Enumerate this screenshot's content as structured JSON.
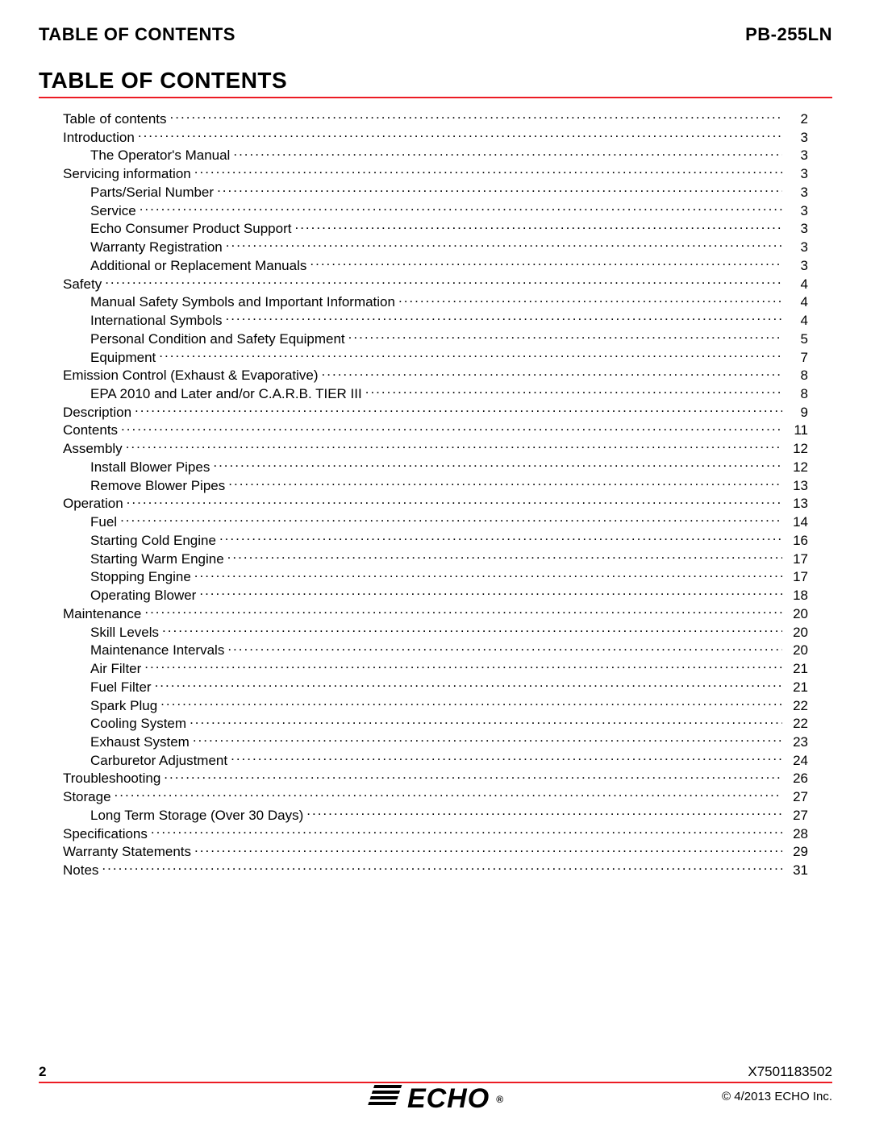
{
  "header": {
    "left": "TABLE OF CONTENTS",
    "right": "PB-255LN"
  },
  "title": "TABLE OF CONTENTS",
  "accent_color": "#ec1c24",
  "toc": [
    {
      "level": 1,
      "label": "Table of contents",
      "page": "2"
    },
    {
      "level": 1,
      "label": "Introduction",
      "page": "3"
    },
    {
      "level": 2,
      "label": "The Operator's Manual",
      "page": "3"
    },
    {
      "level": 1,
      "label": "Servicing information",
      "page": "3"
    },
    {
      "level": 2,
      "label": "Parts/Serial Number",
      "page": "3"
    },
    {
      "level": 2,
      "label": "Service",
      "page": "3"
    },
    {
      "level": 2,
      "label": "Echo Consumer Product Support",
      "page": "3"
    },
    {
      "level": 2,
      "label": "Warranty Registration",
      "page": "3"
    },
    {
      "level": 2,
      "label": "Additional or Replacement Manuals",
      "page": "3"
    },
    {
      "level": 1,
      "label": "Safety",
      "page": "4"
    },
    {
      "level": 2,
      "label": "Manual Safety Symbols and Important Information",
      "page": "4"
    },
    {
      "level": 2,
      "label": "International Symbols",
      "page": "4"
    },
    {
      "level": 2,
      "label": "Personal Condition and Safety Equipment",
      "page": "5"
    },
    {
      "level": 2,
      "label": "Equipment",
      "page": "7"
    },
    {
      "level": 1,
      "label": "Emission Control (Exhaust & Evaporative)",
      "page": "8"
    },
    {
      "level": 2,
      "label": "EPA 2010 and Later and/or C.A.R.B. TIER III",
      "page": "8"
    },
    {
      "level": 1,
      "label": "Description",
      "page": "9"
    },
    {
      "level": 1,
      "label": "Contents",
      "page": "11"
    },
    {
      "level": 1,
      "label": "Assembly",
      "page": "12"
    },
    {
      "level": 2,
      "label": "Install Blower Pipes",
      "page": "12"
    },
    {
      "level": 2,
      "label": "Remove Blower Pipes",
      "page": "13"
    },
    {
      "level": 1,
      "label": "Operation",
      "page": "13"
    },
    {
      "level": 2,
      "label": "Fuel",
      "page": "14"
    },
    {
      "level": 2,
      "label": "Starting Cold Engine",
      "page": "16"
    },
    {
      "level": 2,
      "label": "Starting Warm Engine",
      "page": "17"
    },
    {
      "level": 2,
      "label": "Stopping Engine",
      "page": "17"
    },
    {
      "level": 2,
      "label": "Operating Blower",
      "page": "18"
    },
    {
      "level": 1,
      "label": "Maintenance",
      "page": "20"
    },
    {
      "level": 2,
      "label": "Skill Levels",
      "page": "20"
    },
    {
      "level": 2,
      "label": "Maintenance Intervals",
      "page": "20"
    },
    {
      "level": 2,
      "label": "Air Filter",
      "page": "21"
    },
    {
      "level": 2,
      "label": "Fuel Filter",
      "page": "21"
    },
    {
      "level": 2,
      "label": "Spark Plug",
      "page": "22"
    },
    {
      "level": 2,
      "label": "Cooling System",
      "page": "22"
    },
    {
      "level": 2,
      "label": "Exhaust System",
      "page": "23"
    },
    {
      "level": 2,
      "label": "Carburetor Adjustment",
      "page": "24"
    },
    {
      "level": 1,
      "label": "Troubleshooting",
      "page": "26"
    },
    {
      "level": 1,
      "label": "Storage",
      "page": "27"
    },
    {
      "level": 2,
      "label": "Long Term Storage (Over 30 Days)",
      "page": "27"
    },
    {
      "level": 1,
      "label": "Specifications",
      "page": "28"
    },
    {
      "level": 1,
      "label": "Warranty Statements",
      "page": "29"
    },
    {
      "level": 1,
      "label": "Notes",
      "page": "31"
    }
  ],
  "footer": {
    "page_number": "2",
    "doc_number": "X7501183502",
    "copyright": "© 4/2013 ECHO Inc.",
    "logo_text": "ECHO"
  }
}
